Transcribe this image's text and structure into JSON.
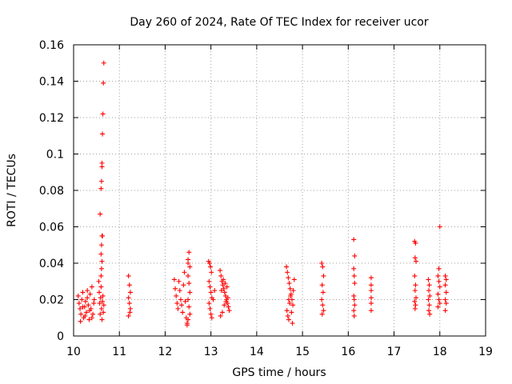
{
  "chart_data": {
    "type": "scatter",
    "title": "Day 260 of 2024, Rate Of TEC Index for receiver ucor",
    "xlabel": "GPS time / hours",
    "ylabel": "ROTI / TECUs",
    "xlim": [
      10,
      19
    ],
    "ylim": [
      0,
      0.16
    ],
    "x_ticks": [
      10,
      11,
      12,
      13,
      14,
      15,
      16,
      17,
      18,
      19
    ],
    "y_ticks": [
      0,
      0.02,
      0.04,
      0.06,
      0.08,
      0.1,
      0.12,
      0.14,
      0.16
    ],
    "x_tick_labels": [
      "10",
      "11",
      "12",
      "13",
      "14",
      "15",
      "16",
      "17",
      "18",
      "19"
    ],
    "y_tick_labels": [
      "0",
      "0.02",
      "0.04",
      "0.06",
      "0.08",
      "0.1",
      "0.12",
      "0.14",
      "0.16"
    ],
    "grid": true,
    "marker": "+",
    "color": "#ff0000",
    "series": [
      {
        "values": [
          [
            10.1,
            0.022
          ],
          [
            10.12,
            0.018
          ],
          [
            10.14,
            0.015
          ],
          [
            10.16,
            0.012
          ],
          [
            10.18,
            0.02
          ],
          [
            10.2,
            0.024
          ],
          [
            10.22,
            0.01
          ],
          [
            10.24,
            0.016
          ],
          [
            10.26,
            0.019
          ],
          [
            10.28,
            0.013
          ],
          [
            10.3,
            0.021
          ],
          [
            10.32,
            0.017
          ],
          [
            10.34,
            0.009
          ],
          [
            10.36,
            0.023
          ],
          [
            10.38,
            0.015
          ],
          [
            10.4,
            0.027
          ],
          [
            10.42,
            0.012
          ],
          [
            10.44,
            0.018
          ],
          [
            10.15,
            0.008
          ],
          [
            10.25,
            0.011
          ],
          [
            10.35,
            0.014
          ],
          [
            10.45,
            0.02
          ],
          [
            10.2,
            0.016
          ],
          [
            10.3,
            0.025
          ],
          [
            10.4,
            0.01
          ],
          [
            10.55,
            0.03
          ],
          [
            10.56,
            0.024
          ],
          [
            10.57,
            0.018
          ],
          [
            10.58,
            0.012
          ],
          [
            10.59,
            0.021
          ],
          [
            10.6,
            0.027
          ],
          [
            10.61,
            0.015
          ],
          [
            10.62,
            0.009
          ],
          [
            10.63,
            0.019
          ],
          [
            10.64,
            0.022
          ],
          [
            10.65,
            0.013
          ],
          [
            10.66,
            0.017
          ],
          [
            10.6,
            0.033
          ],
          [
            10.61,
            0.037
          ],
          [
            10.62,
            0.041
          ],
          [
            10.6,
            0.045
          ],
          [
            10.61,
            0.05
          ],
          [
            10.62,
            0.055
          ],
          [
            10.63,
            0.055
          ],
          [
            10.58,
            0.067
          ],
          [
            10.6,
            0.081
          ],
          [
            10.61,
            0.085
          ],
          [
            10.62,
            0.093
          ],
          [
            10.62,
            0.095
          ],
          [
            10.63,
            0.111
          ],
          [
            10.64,
            0.122
          ],
          [
            10.65,
            0.139
          ],
          [
            10.66,
            0.15
          ],
          [
            11.2,
            0.033
          ],
          [
            11.22,
            0.028
          ],
          [
            11.24,
            0.024
          ],
          [
            11.2,
            0.021
          ],
          [
            11.22,
            0.018
          ],
          [
            11.24,
            0.015
          ],
          [
            11.2,
            0.011
          ],
          [
            11.23,
            0.013
          ],
          [
            12.2,
            0.031
          ],
          [
            12.22,
            0.026
          ],
          [
            12.24,
            0.022
          ],
          [
            12.26,
            0.018
          ],
          [
            12.28,
            0.015
          ],
          [
            12.3,
            0.03
          ],
          [
            12.32,
            0.025
          ],
          [
            12.34,
            0.02
          ],
          [
            12.36,
            0.017
          ],
          [
            12.38,
            0.013
          ],
          [
            12.4,
            0.028
          ],
          [
            12.42,
            0.035
          ],
          [
            12.44,
            0.019
          ],
          [
            12.46,
            0.01
          ],
          [
            12.48,
            0.007
          ],
          [
            12.5,
            0.04
          ],
          [
            12.5,
            0.042
          ],
          [
            12.52,
            0.046
          ],
          [
            12.54,
            0.038
          ],
          [
            12.5,
            0.033
          ],
          [
            12.52,
            0.029
          ],
          [
            12.54,
            0.024
          ],
          [
            12.5,
            0.02
          ],
          [
            12.52,
            0.016
          ],
          [
            12.54,
            0.012
          ],
          [
            12.5,
            0.009
          ],
          [
            12.48,
            0.006
          ],
          [
            12.95,
            0.041
          ],
          [
            12.97,
            0.04
          ],
          [
            12.99,
            0.038
          ],
          [
            13.01,
            0.035
          ],
          [
            12.96,
            0.03
          ],
          [
            12.98,
            0.027
          ],
          [
            13.0,
            0.024
          ],
          [
            13.02,
            0.021
          ],
          [
            12.96,
            0.018
          ],
          [
            12.98,
            0.015
          ],
          [
            13.0,
            0.012
          ],
          [
            13.02,
            0.01
          ],
          [
            13.05,
            0.02
          ],
          [
            13.08,
            0.025
          ],
          [
            13.2,
            0.036
          ],
          [
            13.22,
            0.033
          ],
          [
            13.24,
            0.03
          ],
          [
            13.26,
            0.028
          ],
          [
            13.28,
            0.026
          ],
          [
            13.3,
            0.024
          ],
          [
            13.32,
            0.022
          ],
          [
            13.34,
            0.02
          ],
          [
            13.36,
            0.018
          ],
          [
            13.38,
            0.016
          ],
          [
            13.4,
            0.014
          ],
          [
            13.21,
            0.011
          ],
          [
            13.25,
            0.013
          ],
          [
            13.29,
            0.017
          ],
          [
            13.33,
            0.019
          ],
          [
            13.37,
            0.021
          ],
          [
            13.23,
            0.025
          ],
          [
            13.27,
            0.031
          ],
          [
            13.31,
            0.029
          ],
          [
            13.35,
            0.027
          ],
          [
            14.65,
            0.038
          ],
          [
            14.67,
            0.035
          ],
          [
            14.69,
            0.032
          ],
          [
            14.71,
            0.029
          ],
          [
            14.73,
            0.026
          ],
          [
            14.75,
            0.023
          ],
          [
            14.77,
            0.02
          ],
          [
            14.79,
            0.017
          ],
          [
            14.66,
            0.014
          ],
          [
            14.68,
            0.011
          ],
          [
            14.7,
            0.009
          ],
          [
            14.72,
            0.018
          ],
          [
            14.74,
            0.022
          ],
          [
            14.76,
            0.013
          ],
          [
            14.78,
            0.007
          ],
          [
            14.8,
            0.025
          ],
          [
            14.82,
            0.031
          ],
          [
            14.7,
            0.02
          ],
          [
            15.42,
            0.04
          ],
          [
            15.44,
            0.038
          ],
          [
            15.46,
            0.033
          ],
          [
            15.43,
            0.028
          ],
          [
            15.45,
            0.024
          ],
          [
            15.42,
            0.02
          ],
          [
            15.44,
            0.017
          ],
          [
            15.46,
            0.014
          ],
          [
            15.43,
            0.012
          ],
          [
            16.12,
            0.053
          ],
          [
            16.14,
            0.044
          ],
          [
            16.12,
            0.037
          ],
          [
            16.13,
            0.033
          ],
          [
            16.14,
            0.029
          ],
          [
            16.12,
            0.022
          ],
          [
            16.13,
            0.02
          ],
          [
            16.14,
            0.017
          ],
          [
            16.12,
            0.014
          ],
          [
            16.13,
            0.011
          ],
          [
            16.5,
            0.032
          ],
          [
            16.5,
            0.028
          ],
          [
            16.5,
            0.025
          ],
          [
            16.5,
            0.021
          ],
          [
            16.5,
            0.018
          ],
          [
            16.5,
            0.014
          ],
          [
            17.45,
            0.052
          ],
          [
            17.47,
            0.051
          ],
          [
            17.46,
            0.043
          ],
          [
            17.48,
            0.041
          ],
          [
            17.45,
            0.033
          ],
          [
            17.47,
            0.028
          ],
          [
            17.46,
            0.025
          ],
          [
            17.48,
            0.021
          ],
          [
            17.45,
            0.019
          ],
          [
            17.47,
            0.017
          ],
          [
            17.46,
            0.015
          ],
          [
            17.75,
            0.031
          ],
          [
            17.77,
            0.028
          ],
          [
            17.76,
            0.025
          ],
          [
            17.78,
            0.022
          ],
          [
            17.75,
            0.02
          ],
          [
            17.77,
            0.017
          ],
          [
            17.76,
            0.014
          ],
          [
            17.78,
            0.012
          ],
          [
            18.0,
            0.06
          ],
          [
            17.98,
            0.037
          ],
          [
            17.96,
            0.033
          ],
          [
            17.98,
            0.03
          ],
          [
            18.0,
            0.027
          ],
          [
            17.96,
            0.023
          ],
          [
            17.98,
            0.02
          ],
          [
            18.0,
            0.018
          ],
          [
            17.96,
            0.016
          ],
          [
            18.12,
            0.033
          ],
          [
            18.14,
            0.031
          ],
          [
            18.12,
            0.028
          ],
          [
            18.14,
            0.024
          ],
          [
            18.12,
            0.02
          ],
          [
            18.14,
            0.018
          ],
          [
            18.12,
            0.014
          ]
        ]
      }
    ]
  }
}
